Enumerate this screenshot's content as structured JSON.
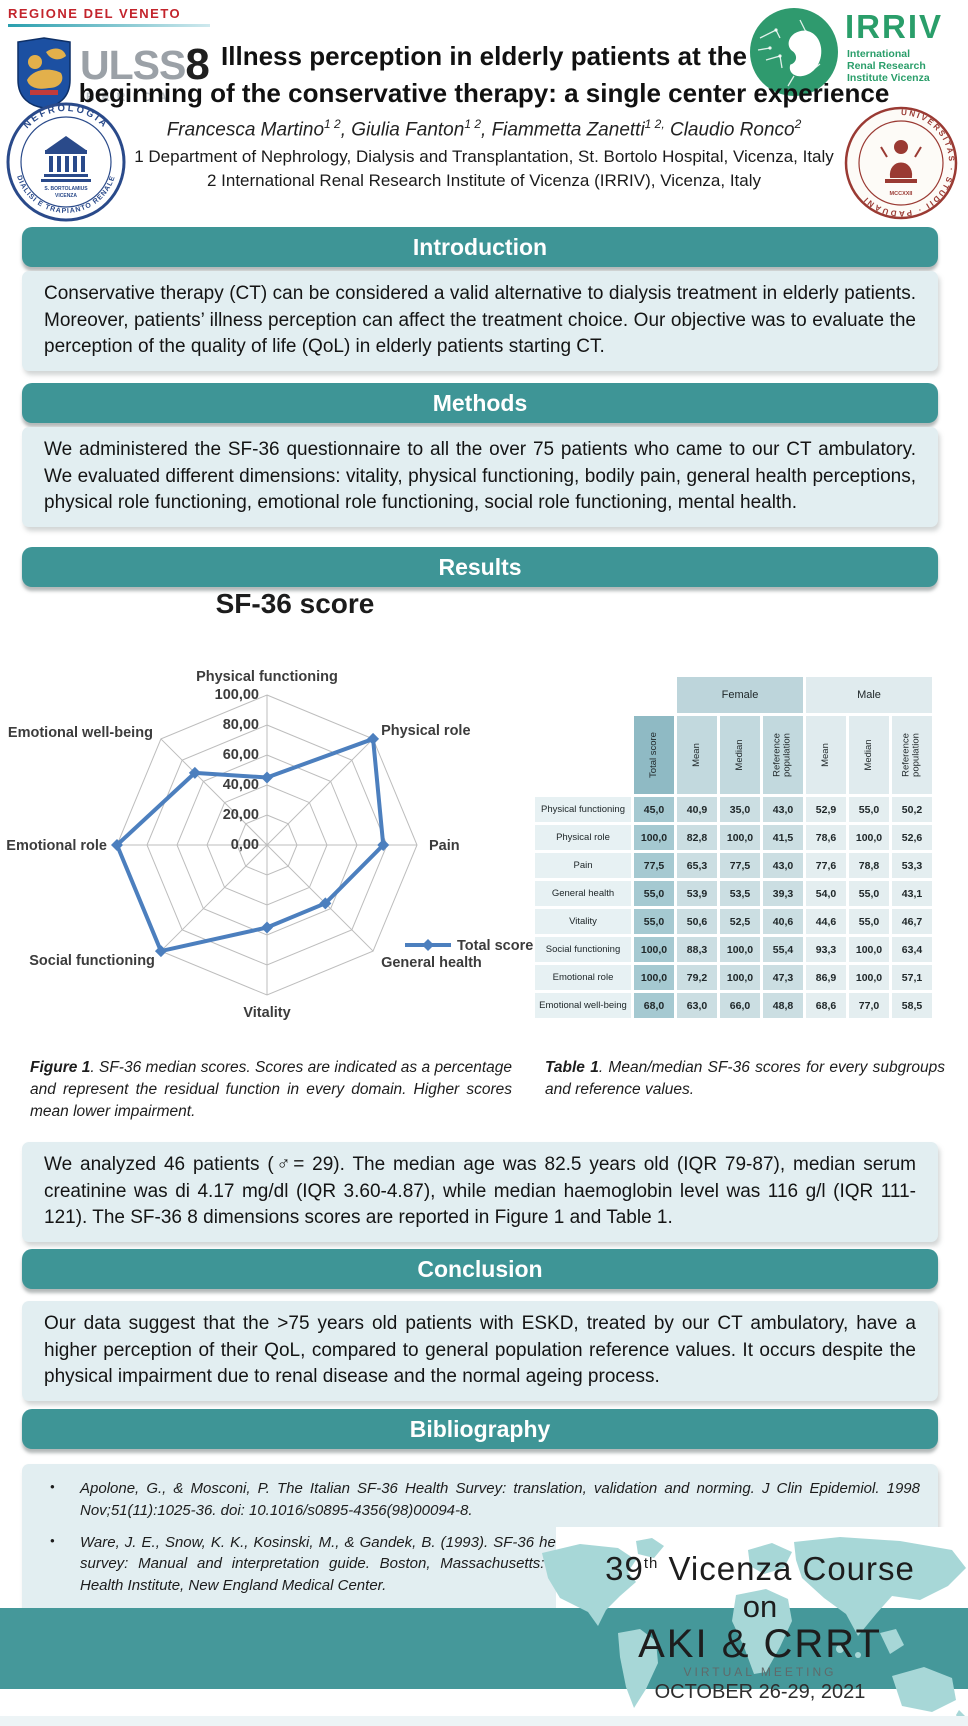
{
  "header": {
    "regione_label": "REGIONE DEL VENETO",
    "ulss_label": "ULSS",
    "ulss_number": "8",
    "berica_label": "BERICA",
    "irriv": {
      "acronym": "IRRIV",
      "line1": "International",
      "line2": "Renal Research",
      "line3": "Institute Vicenza"
    },
    "title_line1": "Illness perception in elderly patients at the",
    "title_line2": "beginning of the conservative therapy: a single center experience",
    "authors": [
      {
        "name": "Francesca Martino",
        "sup": "1 2",
        "tail": ", "
      },
      {
        "name": "Giulia Fanton",
        "sup": "1 2",
        "tail": ", "
      },
      {
        "name": "Fiammetta Zanetti",
        "sup": "1 2,",
        "tail": " "
      },
      {
        "name": "Claudio Ronco",
        "sup": "2",
        "tail": ""
      }
    ],
    "affiliation1": "1 Department of Nephrology, Dialysis and Transplantation, St. Bortolo Hospital, Vicenza, Italy",
    "affiliation2": "2 International Renal Research Institute of Vicenza (IRRIV), Vicenza, Italy",
    "seal_left": {
      "top": "NEFROLOGIA",
      "bottom": "DIALISI E TRAPIANTO RENALE",
      "center1": "S. BORTOLAMIUS",
      "center2": "VICENZA"
    },
    "seal_right": {
      "ring": "UNIVERSITAS · STUDII · PADUANI",
      "year": "MCCXXII"
    }
  },
  "sections": {
    "introduction": {
      "title": "Introduction",
      "body": "Conservative therapy (CT) can be considered a valid alternative to dialysis treatment in elderly patients. Moreover, patients’ illness perception can affect the treatment choice. Our objective was to evaluate the perception of the quality of life (QoL) in elderly patients starting CT."
    },
    "methods": {
      "title": "Methods",
      "body": "We administered the SF-36 questionnaire to all the over 75 patients who came to our CT ambulatory. We evaluated different dimensions: vitality, physical functioning, bodily pain, general health perceptions, physical role functioning, emotional role functioning, social role functioning, mental health."
    },
    "results": {
      "title": "Results",
      "body": "We analyzed 46 patients (♂= 29). The median age was 82.5 years old (IQR 79-87), median serum creatinine was di 4.17 mg/dl (IQR 3.60-4.87), while median haemoglobin level was 116 g/l (IQR 111-121). The SF-36 8 dimensions scores are reported in Figure 1 and Table 1."
    },
    "conclusion": {
      "title": "Conclusion",
      "body": "Our data suggest that the >75 years old patients with ESKD, treated by our CT ambulatory, have a higher perception of their QoL, compared to general population reference values. It occurs despite the physical impairment due to renal disease and the normal ageing process."
    },
    "bibliography": {
      "title": "Bibliography",
      "items": [
        "Apolone, G., & Mosconi, P. The Italian SF-36 Health Survey: translation, validation and norming. J Clin Epidemiol. 1998 Nov;51(11):1025-36. doi: 10.1016/s0895-4356(98)00094-8.",
        "Ware, J. E., Snow, K. K., Kosinski, M., & Gandek, B. (1993). SF-36 health survey: Manual and interpretation guide. Boston, Massachusetts: The Health Institute, New England Medical Center."
      ]
    }
  },
  "figure_caption": {
    "label": "Figure 1",
    "text": ". SF-36 median scores. Scores are indicated as a percentage and represent the residual function in every domain. Higher scores mean lower impairment."
  },
  "table_caption": {
    "label": "Table 1",
    "text": ". Mean/median SF-36 scores for every subgroups and reference values."
  },
  "chart_data": [
    {
      "type": "radar",
      "title": "SF-36 score",
      "categories": [
        "Physical functioning",
        "Physical role",
        "Pain",
        "General health",
        "Vitality",
        "Social functioning",
        "Emotional role",
        "Emotional well-being"
      ],
      "series": [
        {
          "name": "Total score",
          "values": [
            45,
            100,
            77.5,
            55,
            55,
            100,
            100,
            68
          ]
        }
      ],
      "rmin": 0,
      "rmax": 100,
      "tick_interval": 20,
      "tick_labels": [
        "0,00",
        "20,00",
        "40,00",
        "60,00",
        "80,00",
        "100,00"
      ],
      "legend_position": "bottom-right",
      "line_color": "#4C7FBE",
      "grid_color": "#BDBDBD"
    },
    {
      "type": "table",
      "group_headers": [
        {
          "label": "Female",
          "span": 3
        },
        {
          "label": "Male",
          "span": 3
        }
      ],
      "col_headers": [
        "Total score",
        "Mean",
        "Median",
        "Reference population",
        "Mean",
        "Median",
        "Reference population"
      ],
      "rows": [
        {
          "label": "Physical functioning",
          "values": [
            "45,0",
            "40,9",
            "35,0",
            "43,0",
            "52,9",
            "55,0",
            "50,2"
          ]
        },
        {
          "label": "Physical role",
          "values": [
            "100,0",
            "82,8",
            "100,0",
            "41,5",
            "78,6",
            "100,0",
            "52,6"
          ]
        },
        {
          "label": "Pain",
          "values": [
            "77,5",
            "65,3",
            "77,5",
            "43,0",
            "77,6",
            "78,8",
            "53,3"
          ]
        },
        {
          "label": "General health",
          "values": [
            "55,0",
            "53,9",
            "53,5",
            "39,3",
            "54,0",
            "55,0",
            "43,1"
          ]
        },
        {
          "label": "Vitality",
          "values": [
            "55,0",
            "50,6",
            "52,5",
            "40,6",
            "44,6",
            "55,0",
            "46,7"
          ]
        },
        {
          "label": "Social functioning",
          "values": [
            "100,0",
            "88,3",
            "100,0",
            "55,4",
            "93,3",
            "100,0",
            "63,4"
          ]
        },
        {
          "label": "Emotional role",
          "values": [
            "100,0",
            "79,2",
            "100,0",
            "47,3",
            "86,9",
            "100,0",
            "57,1"
          ]
        },
        {
          "label": "Emotional well-being",
          "values": [
            "68,0",
            "63,0",
            "66,0",
            "48,8",
            "68,6",
            "77,0",
            "58,5"
          ]
        }
      ]
    }
  ],
  "footer": {
    "course_number": "39",
    "course_sup": "th",
    "course_rest": " Vicenza Course",
    "course_on": "on",
    "course_name": "AKI & CRRT",
    "virtual": "VIRTUAL MEETING",
    "date": "OCTOBER 26-29, 2021"
  },
  "colors": {
    "section_bar": "#3E9596",
    "panel_background": "#E2EEF1",
    "footer_band": "#45989A",
    "map_landmass": "#A7D7D7",
    "radar_line": "#4C7FBE"
  }
}
